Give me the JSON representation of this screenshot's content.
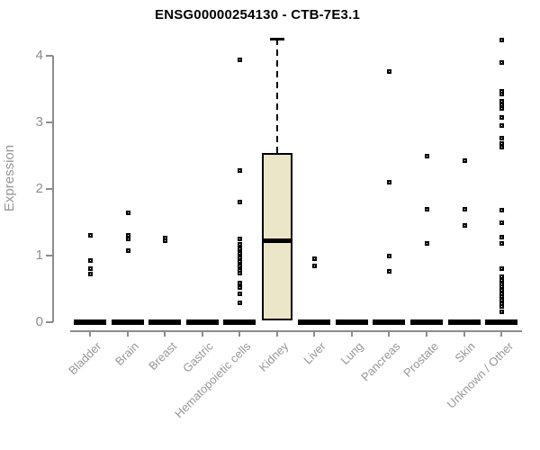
{
  "chart_data": {
    "type": "boxplot",
    "title": "ENSG00000254130 - CTB-7E3.1",
    "xlabel": "",
    "ylabel": "Expression",
    "ylim": [
      0,
      4.3
    ],
    "yticks": [
      0,
      1,
      2,
      3,
      4
    ],
    "grid": false,
    "legend": "none",
    "categories": [
      "Bladder",
      "Brain",
      "Breast",
      "Gastric",
      "Hematopoietic cells",
      "Kidney",
      "Liver",
      "Lung",
      "Pancreas",
      "Prostate",
      "Skin",
      "Unknown / Other"
    ],
    "groups": [
      {
        "name": "Bladder",
        "zero_bar": true,
        "box": null,
        "points": [
          1.32,
          0.94,
          0.81,
          0.74
        ]
      },
      {
        "name": "Brain",
        "zero_bar": true,
        "box": null,
        "points": [
          1.65,
          1.32,
          1.26,
          1.08
        ]
      },
      {
        "name": "Breast",
        "zero_bar": true,
        "box": null,
        "points": [
          1.28,
          1.23
        ]
      },
      {
        "name": "Gastric",
        "zero_bar": true,
        "box": null,
        "points": []
      },
      {
        "name": "Hematopoietic cells",
        "zero_bar": true,
        "box": null,
        "points": [
          3.95,
          2.29,
          1.82,
          1.26,
          1.18,
          1.11,
          1.04,
          0.98,
          0.92,
          0.86,
          0.79,
          0.75,
          0.6,
          0.53,
          0.44,
          0.3
        ]
      },
      {
        "name": "Kidney",
        "zero_bar": false,
        "box": {
          "whisker_low": 0.03,
          "q1": 0.03,
          "median": 1.23,
          "q3": 2.55,
          "whisker_high": 4.26
        },
        "points": []
      },
      {
        "name": "Liver",
        "zero_bar": true,
        "box": null,
        "points": [
          0.97,
          0.86
        ]
      },
      {
        "name": "Lung",
        "zero_bar": true,
        "box": null,
        "points": []
      },
      {
        "name": "Pancreas",
        "zero_bar": true,
        "box": null,
        "points": [
          3.77,
          2.11,
          1.01,
          0.78
        ]
      },
      {
        "name": "Prostate",
        "zero_bar": true,
        "box": null,
        "points": [
          2.5,
          1.71,
          1.2
        ]
      },
      {
        "name": "Skin",
        "zero_bar": true,
        "box": null,
        "points": [
          2.43,
          1.71,
          1.47
        ]
      },
      {
        "name": "Unknown / Other",
        "zero_bar": true,
        "box": null,
        "points": [
          4.25,
          3.91,
          3.48,
          3.44,
          3.33,
          3.28,
          3.22,
          3.08,
          2.97,
          2.78,
          2.7,
          2.64,
          1.69,
          1.5,
          1.29,
          1.19,
          0.81,
          0.69,
          0.64,
          0.59,
          0.54,
          0.49,
          0.44,
          0.39,
          0.34,
          0.29,
          0.25,
          0.16
        ]
      }
    ],
    "colors": {
      "box_fill": "#ebe6c7",
      "box_stroke": "#000000",
      "point": "#000000",
      "axis": "#8c8c8c",
      "label": "#979797",
      "title": "#000000",
      "background": "#ffffff"
    }
  }
}
